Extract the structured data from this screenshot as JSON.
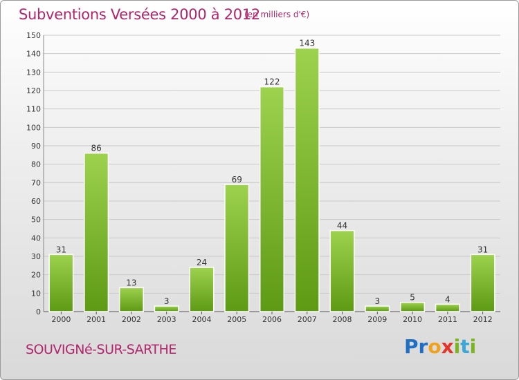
{
  "header": {
    "title": "Subventions Versées 2000 à 2012",
    "unit_note": "(en milliers d'€)"
  },
  "footer": {
    "commune": "SOUVIGNé-SUR-SARTHE",
    "logo_text": "Proxiti"
  },
  "colors": {
    "title": "#b0256b",
    "bar_light": "#9dd24e",
    "bar_dark": "#5e9a14",
    "grid": "#c9c9c9"
  },
  "chart_data": {
    "type": "bar",
    "categories": [
      "2000",
      "2001",
      "2002",
      "2003",
      "2004",
      "2005",
      "2006",
      "2007",
      "2008",
      "2009",
      "2010",
      "2011",
      "2012"
    ],
    "values": [
      31,
      86,
      13,
      3,
      24,
      69,
      122,
      143,
      44,
      3,
      5,
      4,
      31
    ],
    "ylim": [
      0,
      150
    ],
    "yticks": [
      0,
      10,
      20,
      30,
      40,
      50,
      60,
      70,
      80,
      90,
      100,
      110,
      120,
      130,
      140,
      150
    ],
    "grid": true,
    "data_labels": true
  }
}
